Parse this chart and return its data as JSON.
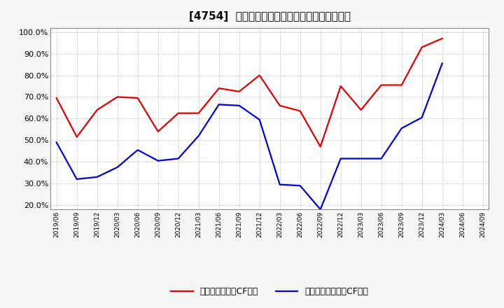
{
  "title": "[4754]  有利子負債キャッシュフロー比率の推移",
  "ylim": [
    0.18,
    1.02
  ],
  "yticks": [
    0.2,
    0.3,
    0.4,
    0.5,
    0.6,
    0.7,
    0.8,
    0.9,
    1.0
  ],
  "background_color": "#f5f5f5",
  "plot_bg_color": "#ffffff",
  "grid_color": "#b0b0b0",
  "dates": [
    "2019/06",
    "2019/09",
    "2019/12",
    "2020/03",
    "2020/06",
    "2020/09",
    "2020/12",
    "2021/03",
    "2021/06",
    "2021/09",
    "2021/12",
    "2022/03",
    "2022/06",
    "2022/09",
    "2022/12",
    "2023/03",
    "2023/06",
    "2023/09",
    "2023/12",
    "2024/03",
    "2024/06",
    "2024/09"
  ],
  "series_red": [
    0.695,
    0.515,
    0.64,
    0.7,
    0.695,
    0.54,
    0.625,
    0.625,
    0.74,
    0.725,
    0.8,
    0.66,
    0.635,
    0.47,
    0.75,
    0.64,
    0.755,
    0.755,
    0.93,
    0.97,
    null,
    null
  ],
  "series_blue": [
    0.49,
    0.32,
    0.33,
    0.375,
    0.455,
    0.405,
    0.415,
    0.52,
    0.665,
    0.66,
    0.595,
    0.295,
    0.29,
    0.18,
    0.415,
    0.415,
    0.415,
    0.555,
    0.605,
    0.855,
    null,
    null
  ],
  "legend_red": "有利子負債営業CF比率",
  "legend_blue": "有利子負債フリーCF比率",
  "line_color_red": "#dd0000",
  "line_color_blue": "#0000cc",
  "line_width": 1.6
}
